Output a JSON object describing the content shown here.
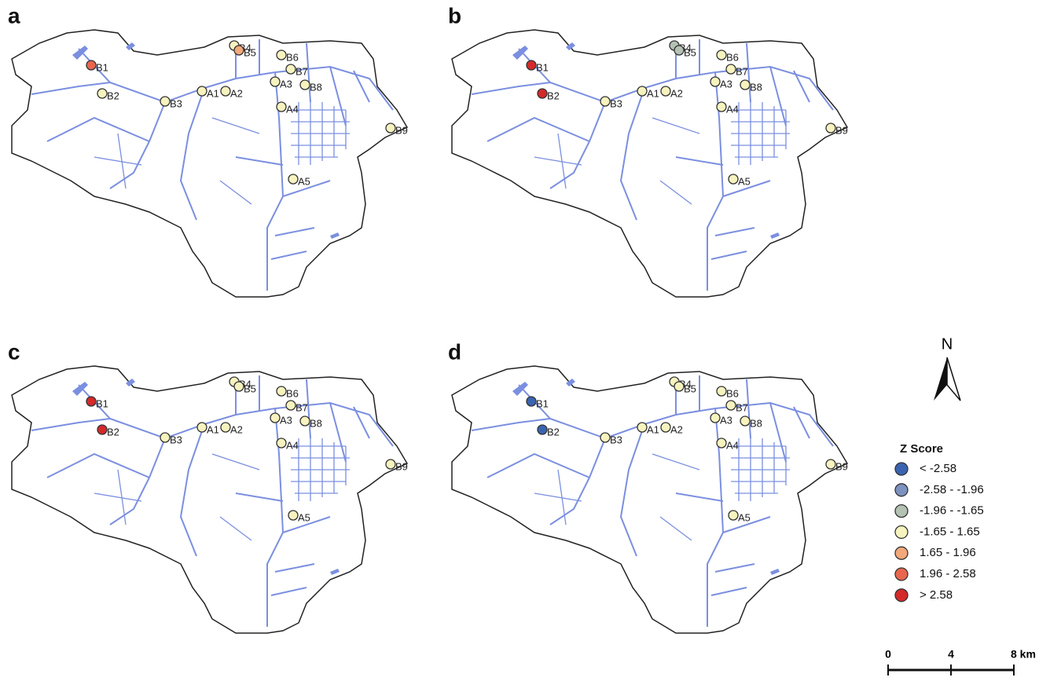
{
  "panels": [
    {
      "label": "a",
      "stations": [
        {
          "name": "B1",
          "color": "#e8674e"
        },
        {
          "name": "B2",
          "color": "#f6f3bf"
        },
        {
          "name": "B3",
          "color": "#f6f3bf"
        },
        {
          "name": "A1",
          "color": "#f6f3bf"
        },
        {
          "name": "A2",
          "color": "#f6f3bf"
        },
        {
          "name": "B4",
          "color": "#f6f3bf"
        },
        {
          "name": "B5",
          "color": "#f2a87a"
        },
        {
          "name": "B6",
          "color": "#f6f3bf"
        },
        {
          "name": "B7",
          "color": "#f6f3bf"
        },
        {
          "name": "A3",
          "color": "#f6f3bf"
        },
        {
          "name": "B8",
          "color": "#f6f3bf"
        },
        {
          "name": "A4",
          "color": "#f6f3bf"
        },
        {
          "name": "B9",
          "color": "#f6f3bf"
        },
        {
          "name": "A5",
          "color": "#f6f3bf"
        }
      ]
    },
    {
      "label": "b",
      "stations": [
        {
          "name": "B1",
          "color": "#d42a2a"
        },
        {
          "name": "B2",
          "color": "#d42a2a"
        },
        {
          "name": "B3",
          "color": "#f6f3bf"
        },
        {
          "name": "A1",
          "color": "#f6f3bf"
        },
        {
          "name": "A2",
          "color": "#f6f3bf"
        },
        {
          "name": "B4",
          "color": "#b4c2b4"
        },
        {
          "name": "B5",
          "color": "#b4c2b4"
        },
        {
          "name": "B6",
          "color": "#f6f3bf"
        },
        {
          "name": "B7",
          "color": "#f6f3bf"
        },
        {
          "name": "A3",
          "color": "#f6f3bf"
        },
        {
          "name": "B8",
          "color": "#f6f3bf"
        },
        {
          "name": "A4",
          "color": "#f6f3bf"
        },
        {
          "name": "B9",
          "color": "#f6f3bf"
        },
        {
          "name": "A5",
          "color": "#f6f3bf"
        }
      ]
    },
    {
      "label": "c",
      "stations": [
        {
          "name": "B1",
          "color": "#d42a2a"
        },
        {
          "name": "B2",
          "color": "#d42a2a"
        },
        {
          "name": "B3",
          "color": "#f6f3bf"
        },
        {
          "name": "A1",
          "color": "#f6f3bf"
        },
        {
          "name": "A2",
          "color": "#f6f3bf"
        },
        {
          "name": "B4",
          "color": "#f6f3bf"
        },
        {
          "name": "B5",
          "color": "#f6f3bf"
        },
        {
          "name": "B6",
          "color": "#f6f3bf"
        },
        {
          "name": "B7",
          "color": "#f6f3bf"
        },
        {
          "name": "A3",
          "color": "#f6f3bf"
        },
        {
          "name": "B8",
          "color": "#f6f3bf"
        },
        {
          "name": "A4",
          "color": "#f6f3bf"
        },
        {
          "name": "B9",
          "color": "#f6f3bf"
        },
        {
          "name": "A5",
          "color": "#f6f3bf"
        }
      ]
    },
    {
      "label": "d",
      "stations": [
        {
          "name": "B1",
          "color": "#3a64b0"
        },
        {
          "name": "B2",
          "color": "#3a64b0"
        },
        {
          "name": "B3",
          "color": "#f6f3bf"
        },
        {
          "name": "A1",
          "color": "#f6f3bf"
        },
        {
          "name": "A2",
          "color": "#f6f3bf"
        },
        {
          "name": "B4",
          "color": "#f6f3bf"
        },
        {
          "name": "B5",
          "color": "#f6f3bf"
        },
        {
          "name": "B6",
          "color": "#f6f3bf"
        },
        {
          "name": "B7",
          "color": "#f6f3bf"
        },
        {
          "name": "A3",
          "color": "#f6f3bf"
        },
        {
          "name": "B8",
          "color": "#f6f3bf"
        },
        {
          "name": "A4",
          "color": "#f6f3bf"
        },
        {
          "name": "B9",
          "color": "#f6f3bf"
        },
        {
          "name": "A5",
          "color": "#f6f3bf"
        }
      ]
    }
  ],
  "north": "N",
  "legend": {
    "title": "Z Score",
    "items": [
      {
        "label": "< -2.58",
        "color": "#3a64b0"
      },
      {
        "label": "-2.58 - -1.96",
        "color": "#7e92c0"
      },
      {
        "label": "-1.96 - -1.65",
        "color": "#b4c2b4"
      },
      {
        "label": "-1.65 - 1.65",
        "color": "#f6f3bf"
      },
      {
        "label": "1.65 - 1.96",
        "color": "#f2a87a"
      },
      {
        "label": "1.96 - 2.58",
        "color": "#e8674e"
      },
      {
        "label": "> 2.58",
        "color": "#d42a2a"
      }
    ]
  },
  "scale": {
    "labels": [
      "0",
      "4",
      "8 km"
    ]
  }
}
